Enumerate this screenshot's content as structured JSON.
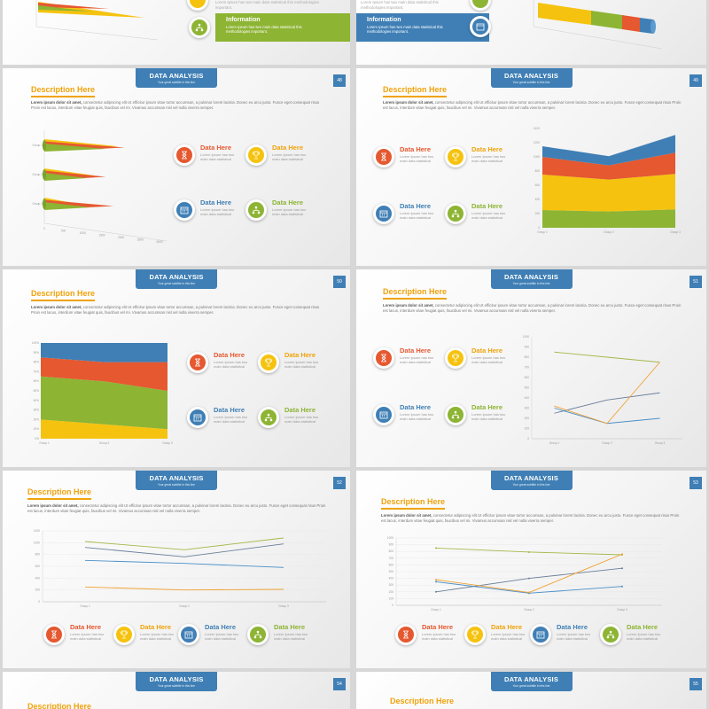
{
  "colors": {
    "red": "#e55830",
    "yellow": "#f5c30f",
    "blue": "#3f7fb5",
    "green": "#8db433",
    "accent": "#f0a30a"
  },
  "header": {
    "title": "DATA ANALYSIS",
    "subtitle": "Your great subtitle in this line"
  },
  "description": {
    "title": "Description Here",
    "lead": "Lorem ipsum dolor sit amet,",
    "text": "consectetur adipiscing elit Ut efficitur ipsum vitae tortor accumsan, a pulvinar lorem lacinia. Donec eu arcu justo. Fusce eget consequat risus Proin est lacus, interdum vitae feugiat quis, faucibus vel mi. Vivamus accumsan nisl vel nulla viverra semper."
  },
  "features": [
    {
      "title": "Data Here",
      "text": "Lorem Ipsum has two main data statistical",
      "icon": "hourglass-icon",
      "color": "red"
    },
    {
      "title": "Data Here",
      "text": "Lorem Ipsum has two main data statistical",
      "icon": "trophy-icon",
      "color": "yellow"
    },
    {
      "title": "Data Here",
      "text": "Lorem Ipsum has two main data statistical",
      "icon": "calendar-icon",
      "color": "blue"
    },
    {
      "title": "Data Here",
      "text": "Lorem Ipsum has two main data statistical",
      "icon": "network-icon",
      "color": "green"
    }
  ],
  "top_partial": {
    "left": {
      "info_title": "Information",
      "info_text": "Lorem Ipsum has two main data statistical this methodologies important.",
      "faded_text": "Lorem Ipsum has two main data statistical this methodologies important."
    },
    "right": {
      "info_title": "Information",
      "info_text": "Lorem Ipsum has two main data statistical this methodologies important.",
      "faded_text": "Lorem Ipsum has two main data statistical this methodologies important."
    }
  },
  "slides": [
    {
      "number": "48"
    },
    {
      "number": "49"
    },
    {
      "number": "50"
    },
    {
      "number": "51"
    },
    {
      "number": "52"
    },
    {
      "number": "53"
    },
    {
      "number": "54"
    },
    {
      "number": "55"
    }
  ],
  "chart_data": [
    {
      "type": "bar",
      "subtype": "3d-cone-horizontal",
      "categories": [
        "Group 1",
        "Group 2",
        "Group 3"
      ],
      "series": [
        {
          "values": [
            1900,
            1300,
            1000
          ]
        },
        {
          "values": [
            2100,
            1600,
            1800
          ]
        },
        {
          "values": [
            1600,
            1100,
            1200
          ]
        }
      ],
      "xticks": [
        "0",
        "500",
        "1000",
        "1500",
        "2000",
        "2500",
        "3000"
      ]
    },
    {
      "type": "area",
      "subtype": "stacked",
      "categories": [
        "Group 1",
        "Group 2",
        "Group 3"
      ],
      "series": [
        {
          "values": [
            250,
            230,
            260
          ]
        },
        {
          "values": [
            500,
            450,
            500
          ]
        },
        {
          "values": [
            250,
            200,
            300
          ]
        },
        {
          "values": [
            150,
            130,
            250
          ]
        }
      ],
      "ylim": [
        0,
        1400
      ],
      "yticks": [
        "0",
        "200",
        "400",
        "600",
        "800",
        "1000",
        "1200",
        "1400"
      ]
    },
    {
      "type": "area",
      "subtype": "100%-stacked",
      "categories": [
        "Group 1",
        "Group 2",
        "Group 3"
      ],
      "series": [
        {
          "values": [
            20,
            15,
            10
          ]
        },
        {
          "values": [
            45,
            45,
            40
          ]
        },
        {
          "values": [
            20,
            20,
            30
          ]
        },
        {
          "values": [
            15,
            20,
            20
          ]
        }
      ],
      "ylim": [
        0,
        100
      ],
      "yticks": [
        "0%",
        "10%",
        "20%",
        "30%",
        "40%",
        "50%",
        "60%",
        "70%",
        "80%",
        "90%",
        "100%"
      ]
    },
    {
      "type": "line",
      "categories": [
        "Group 1",
        "Group 2",
        "Group 3"
      ],
      "series": [
        {
          "values": [
            850,
            800,
            750
          ]
        },
        {
          "values": [
            250,
            380,
            450
          ]
        },
        {
          "values": [
            300,
            150,
            200
          ]
        },
        {
          "values": [
            320,
            150,
            750
          ]
        }
      ],
      "ylim": [
        0,
        1000
      ],
      "yticks": [
        "0",
        "100",
        "200",
        "300",
        "400",
        "500",
        "600",
        "700",
        "800",
        "900",
        "1000"
      ]
    },
    {
      "type": "line",
      "categories": [
        "Group 1",
        "Group 2",
        "Group 3"
      ],
      "series": [
        {
          "values": [
            1020,
            880,
            1080
          ]
        },
        {
          "values": [
            920,
            760,
            980
          ]
        },
        {
          "values": [
            700,
            650,
            580
          ]
        },
        {
          "values": [
            250,
            200,
            210
          ]
        }
      ],
      "ylim": [
        0,
        1200
      ],
      "yticks": [
        "0",
        "200",
        "400",
        "600",
        "800",
        "1000",
        "1200"
      ]
    },
    {
      "type": "line",
      "categories": [
        "Group 1",
        "Group 2",
        "Group 3"
      ],
      "series": [
        {
          "values": [
            850,
            790,
            750
          ]
        },
        {
          "values": [
            200,
            400,
            550
          ]
        },
        {
          "values": [
            350,
            180,
            280
          ]
        },
        {
          "values": [
            380,
            190,
            760
          ]
        }
      ],
      "ylim": [
        0,
        1000
      ],
      "yticks": [
        "0",
        "100",
        "200",
        "300",
        "400",
        "500",
        "600",
        "700",
        "800",
        "900",
        "1000"
      ]
    }
  ]
}
